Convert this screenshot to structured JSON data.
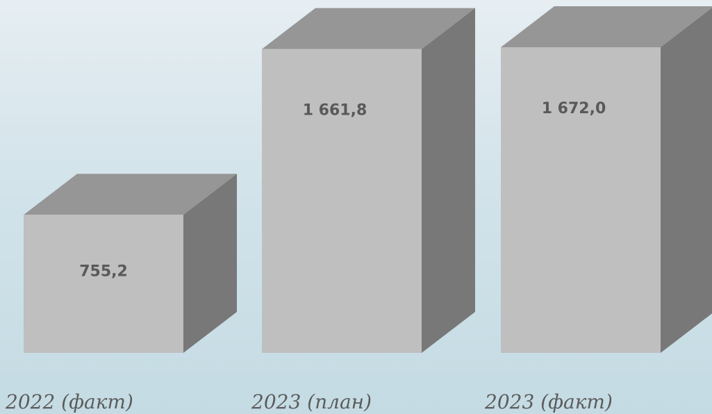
{
  "chart_data": {
    "type": "bar",
    "style": "3d-box",
    "categories": [
      "2022 (факт)",
      "2023 (план)",
      "2023 (факт)"
    ],
    "values": [
      755.2,
      1661.8,
      1672.0
    ],
    "value_labels": [
      "755,2",
      "1 661,8",
      "1 672,0"
    ],
    "title": "",
    "xlabel": "",
    "ylabel": "",
    "ylim": [
      0,
      1850
    ],
    "grid": false,
    "legend": "none",
    "colors": {
      "front": "#bfbfbf",
      "top": "#969696",
      "side": "#787878",
      "value_text": "#595959",
      "category_text": "#5c5c5c"
    }
  }
}
